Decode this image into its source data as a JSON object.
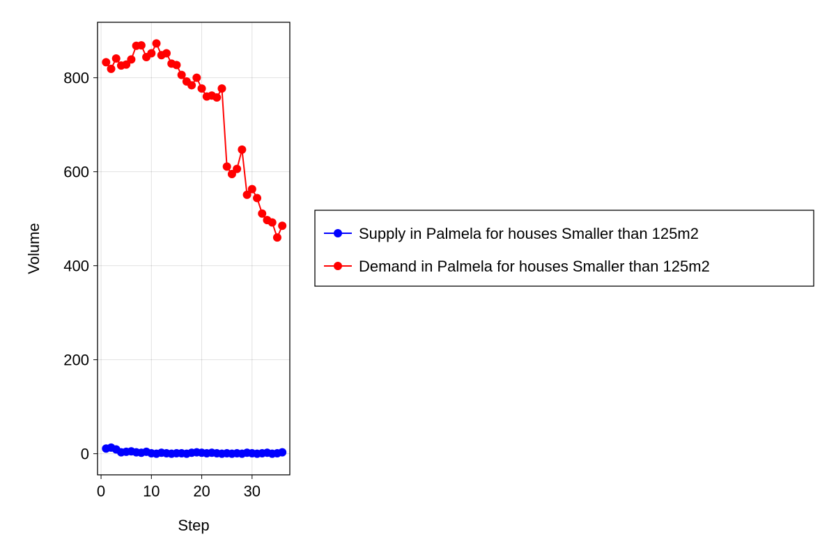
{
  "chart_data": {
    "type": "line",
    "title": "",
    "xlabel": "Step",
    "ylabel": "Volume",
    "xlim": [
      -0.7,
      37.5
    ],
    "ylim": [
      -45,
      918
    ],
    "xticks": [
      0,
      10,
      20,
      30
    ],
    "yticks": [
      0,
      200,
      400,
      600,
      800
    ],
    "grid": true,
    "legend_position": "right",
    "series": [
      {
        "name": "Supply in Palmela for houses Smaller than 125m2",
        "color": "#0000ff",
        "marker": "circle",
        "x": [
          1,
          2,
          3,
          4,
          5,
          6,
          7,
          8,
          9,
          10,
          11,
          12,
          13,
          14,
          15,
          16,
          17,
          18,
          19,
          20,
          21,
          22,
          23,
          24,
          25,
          26,
          27,
          28,
          29,
          30,
          31,
          32,
          33,
          34,
          35,
          36
        ],
        "values": [
          11,
          13,
          9,
          3,
          4,
          5,
          3,
          2,
          4,
          1,
          0,
          2,
          1,
          0,
          1,
          1,
          0,
          2,
          3,
          2,
          1,
          2,
          1,
          0,
          1,
          0,
          1,
          0,
          2,
          1,
          0,
          1,
          2,
          0,
          1,
          3
        ]
      },
      {
        "name": "Demand in Palmela for houses Smaller than 125m2",
        "color": "#ff0000",
        "marker": "circle",
        "x": [
          1,
          2,
          3,
          4,
          5,
          6,
          7,
          8,
          9,
          10,
          11,
          12,
          13,
          14,
          15,
          16,
          17,
          18,
          19,
          20,
          21,
          22,
          23,
          24,
          25,
          26,
          27,
          28,
          29,
          30,
          31,
          32,
          33,
          34,
          35,
          36
        ],
        "values": [
          833,
          819,
          841,
          826,
          828,
          839,
          868,
          869,
          844,
          852,
          873,
          848,
          852,
          830,
          827,
          806,
          792,
          784,
          800,
          777,
          760,
          762,
          758,
          777,
          611,
          595,
          606,
          647,
          551,
          563,
          544,
          511,
          497,
          492,
          460,
          485
        ]
      }
    ]
  }
}
